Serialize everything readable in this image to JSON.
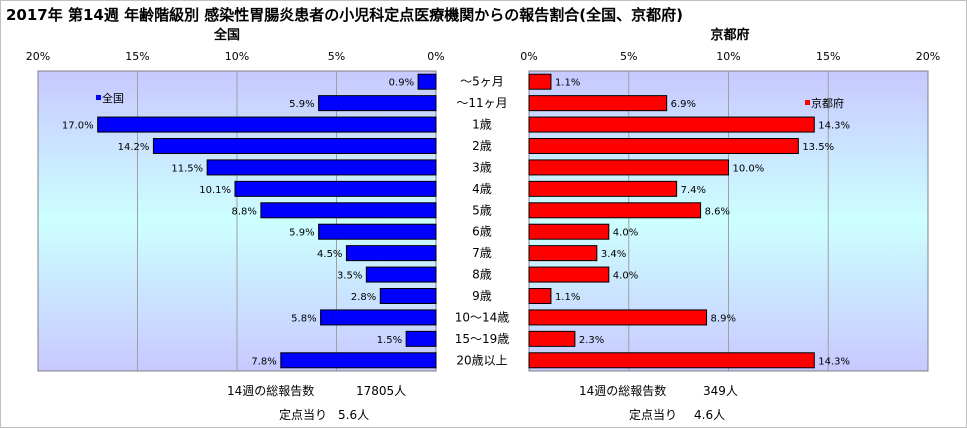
{
  "title": "2017年 第14週 年齢階級別 感染性胃腸炎患者の小児科定点医療機関からの報告割合(全国、京都府)",
  "colors": {
    "national": "#0000ff",
    "kyoto": "#ff0000",
    "plot_bg_top": "#c8c8ff",
    "plot_bg_mid": "#ccffff",
    "plot_bg_bottom": "#c8c8ff"
  },
  "chart_data": {
    "type": "bar",
    "orientation": "horizontal",
    "title": "2017年 第14週 年齢階級別 感染性胃腸炎患者の小児科定点医療機関からの報告割合(全国、京都府)",
    "categories": [
      "～5ヶ月",
      "～11ヶ月",
      "1歳",
      "2歳",
      "3歳",
      "4歳",
      "5歳",
      "6歳",
      "7歳",
      "8歳",
      "9歳",
      "10～14歳",
      "15～19歳",
      "20歳以上"
    ],
    "xlim": [
      0,
      20
    ],
    "xticks": [
      "20%",
      "15%",
      "10%",
      "5%",
      "0%"
    ],
    "xticks_right": [
      "0%",
      "5%",
      "10%",
      "15%",
      "20%"
    ],
    "grid": true,
    "panels": [
      {
        "name": "全国",
        "legend": "全国",
        "legend_position": "top-left",
        "direction": "right-to-left",
        "values": [
          0.9,
          5.9,
          17.0,
          14.2,
          11.5,
          10.1,
          8.8,
          5.9,
          4.5,
          3.5,
          2.8,
          5.8,
          1.5,
          7.8
        ],
        "labels": [
          "0.9%",
          "5.9%",
          "17.0%",
          "14.2%",
          "11.5%",
          "10.1%",
          "8.8%",
          "5.9%",
          "4.5%",
          "3.5%",
          "2.8%",
          "5.8%",
          "1.5%",
          "7.8%"
        ],
        "total_label": "14週の総報告数",
        "total_value": "17805人",
        "per_site_label": "定点当り",
        "per_site_value": "5.6人"
      },
      {
        "name": "京都府",
        "legend": "京都府",
        "legend_position": "top-right",
        "direction": "left-to-right",
        "values": [
          1.1,
          6.9,
          14.3,
          13.5,
          10.0,
          7.4,
          8.6,
          4.0,
          3.4,
          4.0,
          1.1,
          8.9,
          2.3,
          14.3
        ],
        "labels": [
          "1.1%",
          "6.9%",
          "14.3%",
          "13.5%",
          "10.0%",
          "7.4%",
          "8.6%",
          "4.0%",
          "3.4%",
          "4.0%",
          "1.1%",
          "8.9%",
          "2.3%",
          "14.3%"
        ],
        "total_label": "14週の総報告数",
        "total_value": "349人",
        "per_site_label": "定点当り",
        "per_site_value": "4.6人"
      }
    ]
  }
}
